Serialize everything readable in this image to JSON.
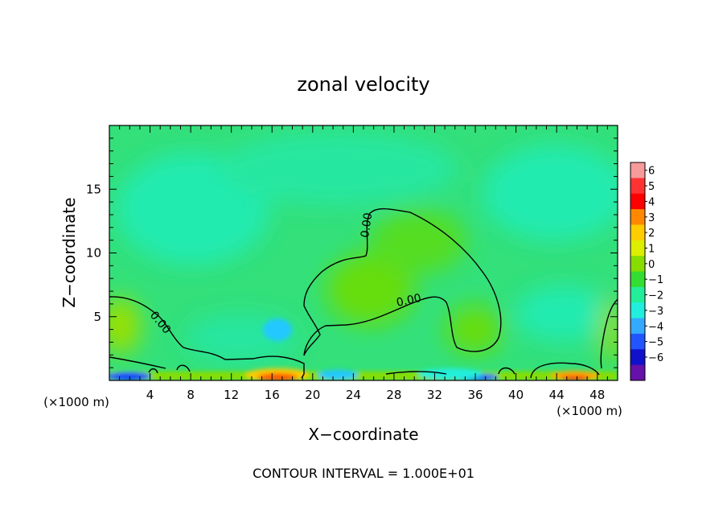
{
  "chart_data": {
    "type": "heatmap",
    "title": "zonal velocity",
    "xlabel": "X−coordinate",
    "ylabel": "Z−coordinate",
    "x_units_left": "(×1000 m)",
    "x_units_right": "(×1000 m)",
    "footer": "CONTOUR INTERVAL = 1.000E+01",
    "xlim": [
      0,
      50
    ],
    "ylim": [
      0,
      20
    ],
    "x_ticks": [
      4,
      8,
      12,
      16,
      20,
      24,
      28,
      32,
      36,
      40,
      44,
      48
    ],
    "y_ticks": [
      5,
      10,
      15
    ],
    "colorbar": {
      "levels": [
        6,
        5,
        4,
        3,
        2,
        1,
        0,
        -1,
        -2,
        -3,
        -4,
        -5,
        -6
      ],
      "labels": [
        "6",
        "5",
        "4",
        "3",
        "2",
        "1",
        "0",
        "−1",
        "−2",
        "−3",
        "−4",
        "−5",
        "−6"
      ],
      "colors": [
        "#f79a9a",
        "#ff3333",
        "#ff0000",
        "#ff8800",
        "#ffcc00",
        "#ddee00",
        "#88dd00",
        "#33dd33",
        "#22ee99",
        "#22eedd",
        "#33aaff",
        "#2255ff",
        "#1111cc",
        "#6611aa"
      ]
    },
    "contour_labels": [
      "0.00",
      "0.00",
      "0.00"
    ]
  }
}
